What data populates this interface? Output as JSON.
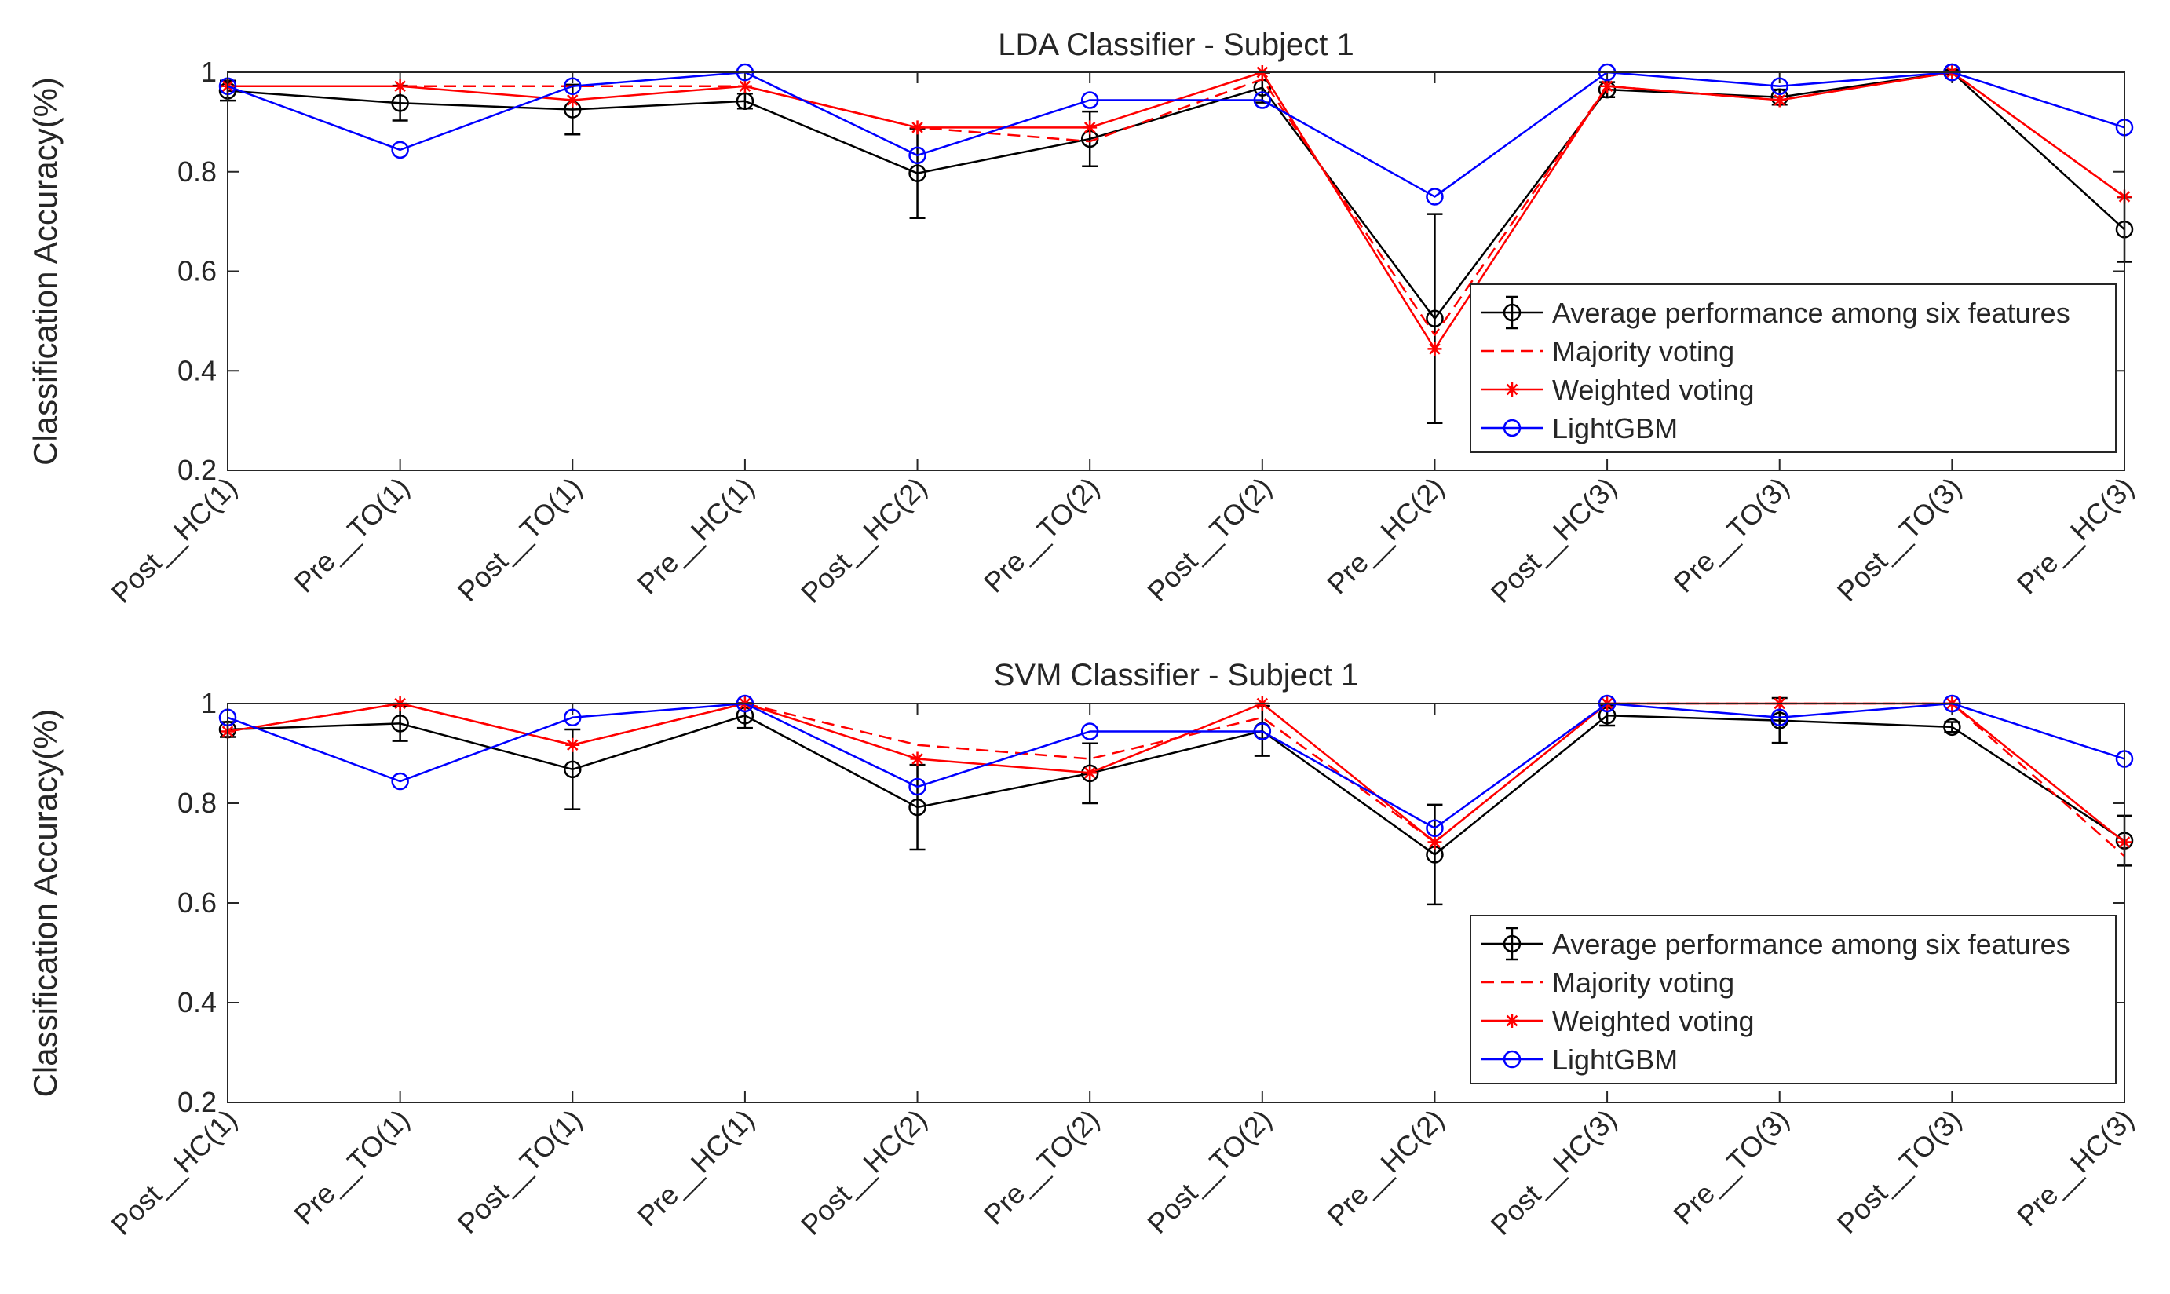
{
  "chart_data": [
    {
      "type": "line",
      "title": "LDA Classifier - Subject 1",
      "xlabel": "",
      "ylabel": "Classification Accuracy(%)",
      "ylim": [
        0.2,
        1
      ],
      "yticks": [
        0.2,
        0.4,
        0.6,
        0.8,
        1
      ],
      "ytick_labels": [
        "0.2",
        "0.4",
        "0.6",
        "0.8",
        "1"
      ],
      "categories": [
        "Post__HC(1)",
        "Pre__TO(1)",
        "Post__TO(1)",
        "Pre__HC(1)",
        "Post__HC(2)",
        "Pre__TO(2)",
        "Post__TO(2)",
        "Pre__HC(2)",
        "Post__HC(3)",
        "Pre__TO(3)",
        "Post__TO(3)",
        "Pre__HC(3)"
      ],
      "legend_position": "bottom-right",
      "series": [
        {
          "name": "Average performance among six features",
          "color": "#000000",
          "style": "solid",
          "marker": "circle",
          "values": [
            0.963,
            0.938,
            0.925,
            0.942,
            0.797,
            0.866,
            0.969,
            0.505,
            0.965,
            0.95,
            1.0,
            0.684
          ],
          "errors": [
            0.02,
            0.035,
            0.05,
            0.015,
            0.09,
            0.055,
            0.03,
            0.21,
            0.015,
            0.015,
            0.005,
            0.065
          ]
        },
        {
          "name": "Majority voting",
          "color": "#ff0000",
          "style": "dashed",
          "marker": "none",
          "values": [
            0.972,
            0.972,
            0.972,
            0.972,
            0.889,
            0.861,
            0.986,
            0.472,
            0.972,
            0.944,
            1.0,
            0.75
          ]
        },
        {
          "name": "Weighted voting",
          "color": "#ff0000",
          "style": "solid",
          "marker": "asterisk",
          "values": [
            0.972,
            0.972,
            0.944,
            0.972,
            0.889,
            0.889,
            1.0,
            0.444,
            0.972,
            0.944,
            1.0,
            0.75
          ]
        },
        {
          "name": "LightGBM",
          "color": "#0000ff",
          "style": "solid",
          "marker": "circle",
          "values": [
            0.972,
            0.844,
            0.972,
            1.0,
            0.833,
            0.944,
            0.944,
            0.75,
            1.0,
            0.972,
            1.0,
            0.889
          ]
        }
      ]
    },
    {
      "type": "line",
      "title": "SVM Classifier - Subject 1",
      "xlabel": "",
      "ylabel": "Classification Accuracy(%)",
      "ylim": [
        0.2,
        1
      ],
      "yticks": [
        0.2,
        0.4,
        0.6,
        0.8,
        1
      ],
      "ytick_labels": [
        "0.2",
        "0.4",
        "0.6",
        "0.8",
        "1"
      ],
      "categories": [
        "Post__HC(1)",
        "Pre__TO(1)",
        "Post__TO(1)",
        "Pre__HC(1)",
        "Post__HC(2)",
        "Pre__TO(2)",
        "Post__TO(2)",
        "Pre__HC(2)",
        "Post__HC(3)",
        "Pre__TO(3)",
        "Post__TO(3)",
        "Pre__HC(3)"
      ],
      "legend_position": "bottom-right",
      "series": [
        {
          "name": "Average performance among six features",
          "color": "#000000",
          "style": "solid",
          "marker": "circle",
          "values": [
            0.948,
            0.96,
            0.868,
            0.976,
            0.792,
            0.86,
            0.945,
            0.697,
            0.976,
            0.966,
            0.953,
            0.725
          ],
          "errors": [
            0.015,
            0.035,
            0.08,
            0.025,
            0.085,
            0.06,
            0.05,
            0.1,
            0.02,
            0.045,
            0.01,
            0.05
          ]
        },
        {
          "name": "Majority voting",
          "color": "#ff0000",
          "style": "dashed",
          "marker": "none",
          "values": [
            0.944,
            1.0,
            0.917,
            1.0,
            0.917,
            0.889,
            0.972,
            0.722,
            1.0,
            1.0,
            1.0,
            0.694
          ]
        },
        {
          "name": "Weighted voting",
          "color": "#ff0000",
          "style": "solid",
          "marker": "asterisk",
          "values": [
            0.944,
            1.0,
            0.917,
            1.0,
            0.889,
            0.861,
            1.0,
            0.722,
            1.0,
            1.0,
            1.0,
            0.722
          ]
        },
        {
          "name": "LightGBM",
          "color": "#0000ff",
          "style": "solid",
          "marker": "circle",
          "values": [
            0.972,
            0.844,
            0.972,
            1.0,
            0.833,
            0.944,
            0.944,
            0.75,
            1.0,
            0.972,
            1.0,
            0.889
          ]
        }
      ]
    }
  ]
}
